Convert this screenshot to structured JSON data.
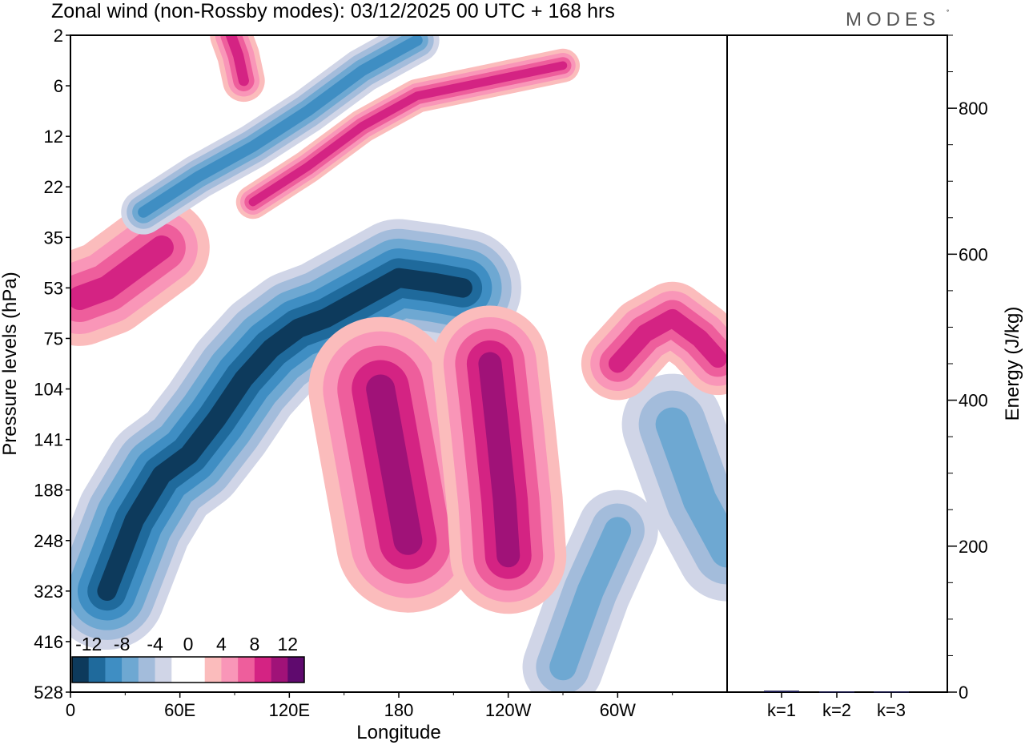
{
  "chart_data": {
    "type": "heatmap",
    "title": "Zonal wind (non-Rossby modes):  03/12/2025  00 UTC  + 168 hrs",
    "brand": "MODES",
    "xlabel": "Longitude",
    "ylabel": "Pressure levels (hPa)",
    "x_ticks": [
      {
        "lon": 0,
        "label": "0"
      },
      {
        "lon": 60,
        "label": "60E"
      },
      {
        "lon": 120,
        "label": "120E"
      },
      {
        "lon": 180,
        "label": "180"
      },
      {
        "lon": 240,
        "label": "120W"
      },
      {
        "lon": 300,
        "label": "60W"
      }
    ],
    "x_range": [
      0,
      360
    ],
    "y_levels": [
      "2",
      "6",
      "12",
      "22",
      "35",
      "53",
      "75",
      "104",
      "141",
      "188",
      "248",
      "323",
      "416",
      "528"
    ],
    "colorbar": {
      "tick_labels": [
        "-12",
        "-8",
        "-4",
        "0",
        "4",
        "8",
        "12"
      ],
      "colors": [
        "#0d3a5c",
        "#1f6a9c",
        "#3f8ec3",
        "#6ea8d2",
        "#a3bcdb",
        "#d0d5e7",
        "#ffffff",
        "#ffffff",
        "#fbbcbc",
        "#f996b8",
        "#ee5e9c",
        "#d42383",
        "#a01278",
        "#5f0a6e"
      ]
    },
    "energy_panel": {
      "ylabel": "Energy (J/kg)",
      "ylim": [
        0,
        900
      ],
      "y_ticks": [
        0,
        200,
        400,
        600,
        800
      ],
      "categories": [
        "k=1",
        "k=2",
        "k=3"
      ],
      "values": [
        2,
        1,
        1
      ],
      "bar_color": "#1a1a50"
    },
    "features": [
      {
        "id": "trop-neg-main",
        "sign": "neg",
        "level": 6,
        "lon": 95,
        "lev": 5.8,
        "path": [
          [
            20,
            11
          ],
          [
            35,
            9.6
          ],
          [
            50,
            8.7
          ],
          [
            65,
            8.3
          ],
          [
            80,
            7.6
          ],
          [
            95,
            6.8
          ],
          [
            110,
            6.2
          ],
          [
            125,
            5.8
          ],
          [
            140,
            5.6
          ],
          [
            160,
            5.2
          ],
          [
            180,
            4.8
          ],
          [
            200,
            4.9
          ],
          [
            215,
            5.0
          ]
        ],
        "width": [
          1.2,
          1.4,
          1.5,
          1.5,
          1.4,
          1.4,
          1.3,
          1.2,
          1.1,
          1.0,
          0.9,
          0.7,
          0.5
        ]
      },
      {
        "id": "trop-neg-right",
        "sign": "neg",
        "level": 3,
        "lon": 340,
        "lev": 9.5,
        "path": [
          [
            330,
            7.7
          ],
          [
            345,
            9.2
          ],
          [
            360,
            10.2
          ]
        ],
        "width": [
          0.9,
          1.1,
          1.0
        ]
      },
      {
        "id": "trop-neg-right2",
        "sign": "neg",
        "level": 3,
        "lon": 295,
        "lev": 10.5,
        "path": [
          [
            270,
            12.5
          ],
          [
            285,
            11.0
          ],
          [
            300,
            9.8
          ]
        ],
        "width": [
          0.8,
          0.9,
          0.7
        ]
      },
      {
        "id": "pos-blob-180",
        "sign": "pos",
        "level": 5,
        "lon": 180,
        "lev": 8.5,
        "path": [
          [
            170,
            7.0
          ],
          [
            175,
            8.0
          ],
          [
            180,
            9.0
          ],
          [
            185,
            10.0
          ]
        ],
        "width": [
          1.3,
          1.7,
          1.6,
          1.1
        ]
      },
      {
        "id": "pos-blob-120w",
        "sign": "pos",
        "level": 5,
        "lon": 235,
        "lev": 8.5,
        "path": [
          [
            230,
            6.5
          ],
          [
            234,
            7.8
          ],
          [
            238,
            9.2
          ],
          [
            240,
            10.3
          ]
        ],
        "width": [
          1.0,
          1.4,
          1.3,
          0.9
        ]
      },
      {
        "id": "pos-blob-ne",
        "sign": "pos",
        "level": 4,
        "lon": 320,
        "lev": 6.0,
        "path": [
          [
            300,
            6.5
          ],
          [
            315,
            5.9
          ],
          [
            330,
            5.6
          ],
          [
            345,
            6.0
          ],
          [
            355,
            6.4
          ]
        ],
        "width": [
          0.7,
          0.8,
          0.8,
          0.7,
          0.6
        ]
      },
      {
        "id": "pos-left-53",
        "sign": "pos",
        "level": 4,
        "lon": 20,
        "lev": 5.0,
        "path": [
          [
            5,
            5.2
          ],
          [
            20,
            5.0
          ],
          [
            35,
            4.6
          ],
          [
            50,
            4.2
          ]
        ],
        "width": [
          0.9,
          1.0,
          1.0,
          0.9
        ]
      },
      {
        "id": "strat-neg-1",
        "sign": "neg",
        "level": 4,
        "lon": 120,
        "lev": 2.0,
        "path": [
          [
            40,
            3.5
          ],
          [
            70,
            2.8
          ],
          [
            100,
            2.2
          ],
          [
            130,
            1.5
          ],
          [
            160,
            0.7
          ],
          [
            190,
            0.1
          ]
        ],
        "width": [
          0.3,
          0.45,
          0.5,
          0.5,
          0.5,
          0.4
        ]
      },
      {
        "id": "strat-pos-1",
        "sign": "pos",
        "level": 4,
        "lon": 150,
        "lev": 2.3,
        "path": [
          [
            100,
            3.3
          ],
          [
            130,
            2.6
          ],
          [
            160,
            1.8
          ],
          [
            190,
            1.2
          ],
          [
            230,
            0.9
          ],
          [
            270,
            0.6
          ]
        ],
        "width": [
          0.3,
          0.35,
          0.4,
          0.35,
          0.3,
          0.3
        ]
      },
      {
        "id": "strat-pos-top",
        "sign": "pos",
        "level": 4,
        "lon": 92,
        "lev": 0.4,
        "path": [
          [
            88,
            0.0
          ],
          [
            92,
            0.4
          ],
          [
            95,
            0.9
          ]
        ],
        "width": [
          0.35,
          0.5,
          0.4
        ]
      }
    ]
  }
}
